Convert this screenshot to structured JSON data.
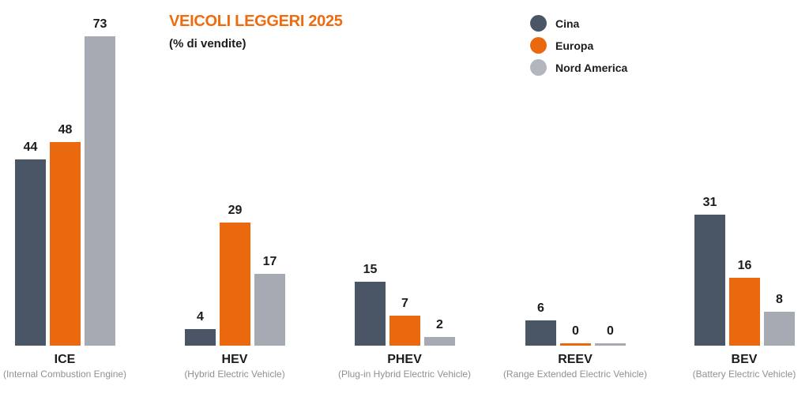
{
  "header": {
    "title": "VEICOLI LEGGERI 2025",
    "subtitle": "(% di vendite)"
  },
  "colors": {
    "title": "#ed6c0f",
    "cina": "#4a5565",
    "europa": "#ea690e",
    "nord_america": "#a6abb3",
    "label_text": "#1c1c1c",
    "sublabel_text": "#8e9194",
    "background": "#ffffff"
  },
  "legend": {
    "position": "top-right",
    "items": [
      {
        "label": "Cina",
        "color": "#4a5565"
      },
      {
        "label": "Europa",
        "color": "#ea690e"
      },
      {
        "label": "Nord America",
        "color": "#b2b6bd"
      }
    ]
  },
  "chart_data": {
    "type": "bar",
    "title": "VEICOLI LEGGERI 2025",
    "subtitle": "(% di vendite)",
    "categories": [
      "ICE",
      "HEV",
      "PHEV",
      "REEV",
      "BEV"
    ],
    "category_sublabels": [
      "(Internal Combustion Engine)",
      "(Hybrid Electric Vehicle)",
      "(Plug-in Hybrid Electric Vehicle)",
      "(Range Extended Electric Vehicle)",
      "(Battery Electric Vehicle)"
    ],
    "series": [
      {
        "name": "Cina",
        "color": "#4a5565",
        "values": [
          44,
          4,
          15,
          6,
          31
        ]
      },
      {
        "name": "Europa",
        "color": "#ea690e",
        "values": [
          48,
          29,
          7,
          0,
          16
        ]
      },
      {
        "name": "Nord America",
        "color": "#a6abb3",
        "values": [
          73,
          17,
          2,
          0,
          8
        ]
      }
    ],
    "ylim": [
      0,
      73
    ],
    "grid": false,
    "axes_visible": false,
    "data_labels": true,
    "legend_position": "top-right"
  }
}
